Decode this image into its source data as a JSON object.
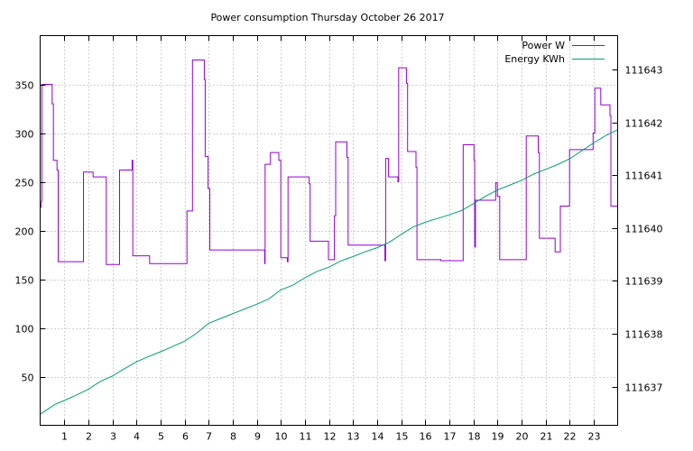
{
  "chart_data": {
    "type": "line",
    "title": "Power consumption Thursday October 26 2017",
    "xlabel": "",
    "ylabel": "",
    "y2label": "",
    "xlim": [
      0,
      24
    ],
    "ylim": [
      0,
      400
    ],
    "y2lim": [
      111636.27,
      111643.64
    ],
    "x_ticks": [
      1,
      2,
      3,
      4,
      5,
      6,
      7,
      8,
      9,
      10,
      11,
      12,
      13,
      14,
      15,
      16,
      17,
      18,
      19,
      20,
      21,
      22,
      23
    ],
    "y_ticks": [
      50,
      100,
      150,
      200,
      250,
      300,
      350
    ],
    "y2_ticks": [
      111637,
      111638,
      111639,
      111640,
      111641,
      111642,
      111643
    ],
    "grid": true,
    "legend_position": "top-right",
    "colors": {
      "power": "#9400d3",
      "energy": "#009e73"
    },
    "series": [
      {
        "name": "Power W",
        "axis": "y",
        "step": true,
        "color": "#9400d3",
        "points": [
          [
            0.0,
            224
          ],
          [
            0.05,
            230
          ],
          [
            0.07,
            350
          ],
          [
            0.45,
            350
          ],
          [
            0.5,
            330
          ],
          [
            0.55,
            272
          ],
          [
            0.7,
            262
          ],
          [
            0.75,
            168
          ],
          [
            1.75,
            168
          ],
          [
            1.8,
            260
          ],
          [
            2.15,
            260
          ],
          [
            2.2,
            255
          ],
          [
            2.7,
            255
          ],
          [
            2.75,
            165
          ],
          [
            3.25,
            165
          ],
          [
            3.3,
            262
          ],
          [
            3.8,
            262
          ],
          [
            3.82,
            272
          ],
          [
            3.85,
            174
          ],
          [
            4.5,
            174
          ],
          [
            4.55,
            166
          ],
          [
            6.0,
            166
          ],
          [
            6.1,
            220
          ],
          [
            6.3,
            220
          ],
          [
            6.33,
            375
          ],
          [
            6.8,
            375
          ],
          [
            6.82,
            355
          ],
          [
            6.86,
            276
          ],
          [
            6.98,
            243
          ],
          [
            7.05,
            180
          ],
          [
            9.3,
            180
          ],
          [
            9.33,
            166
          ],
          [
            9.35,
            268
          ],
          [
            9.55,
            268
          ],
          [
            9.57,
            280
          ],
          [
            9.9,
            280
          ],
          [
            9.92,
            272
          ],
          [
            10.0,
            172
          ],
          [
            10.25,
            172
          ],
          [
            10.27,
            168
          ],
          [
            10.3,
            255
          ],
          [
            11.15,
            255
          ],
          [
            11.18,
            248
          ],
          [
            11.22,
            189
          ],
          [
            11.95,
            189
          ],
          [
            11.98,
            170
          ],
          [
            12.2,
            170
          ],
          [
            12.23,
            215
          ],
          [
            12.28,
            291
          ],
          [
            12.7,
            291
          ],
          [
            12.75,
            275
          ],
          [
            12.8,
            185
          ],
          [
            14.3,
            185
          ],
          [
            14.33,
            169
          ],
          [
            14.36,
            274
          ],
          [
            14.45,
            274
          ],
          [
            14.48,
            255
          ],
          [
            14.85,
            255
          ],
          [
            14.87,
            250
          ],
          [
            14.9,
            367
          ],
          [
            15.2,
            367
          ],
          [
            15.22,
            351
          ],
          [
            15.27,
            281
          ],
          [
            15.6,
            281
          ],
          [
            15.62,
            265
          ],
          [
            15.66,
            170
          ],
          [
            16.6,
            170
          ],
          [
            16.65,
            169
          ],
          [
            17.55,
            169
          ],
          [
            17.58,
            288
          ],
          [
            18.0,
            288
          ],
          [
            18.03,
            272
          ],
          [
            18.06,
            183
          ],
          [
            18.09,
            231
          ],
          [
            18.9,
            231
          ],
          [
            18.93,
            249
          ],
          [
            19.0,
            235
          ],
          [
            19.1,
            170
          ],
          [
            20.15,
            170
          ],
          [
            20.2,
            297
          ],
          [
            20.65,
            297
          ],
          [
            20.7,
            280
          ],
          [
            20.75,
            192
          ],
          [
            21.35,
            192
          ],
          [
            21.4,
            178
          ],
          [
            21.6,
            178
          ],
          [
            21.62,
            225
          ],
          [
            21.95,
            225
          ],
          [
            22.0,
            283
          ],
          [
            22.95,
            283
          ],
          [
            22.98,
            300
          ],
          [
            23.05,
            346
          ],
          [
            23.25,
            346
          ],
          [
            23.3,
            329
          ],
          [
            23.65,
            329
          ],
          [
            23.68,
            318
          ],
          [
            23.72,
            225
          ],
          [
            24.0,
            225
          ]
        ]
      },
      {
        "name": "Energy KWh",
        "axis": "y2",
        "step": false,
        "color": "#009e73",
        "points": [
          [
            0.0,
            111636.48
          ],
          [
            0.3,
            111636.57
          ],
          [
            0.6,
            111636.66
          ],
          [
            1.0,
            111636.74
          ],
          [
            1.5,
            111636.84
          ],
          [
            2.0,
            111636.95
          ],
          [
            2.5,
            111637.1
          ],
          [
            3.0,
            111637.2
          ],
          [
            3.5,
            111637.34
          ],
          [
            4.0,
            111637.47
          ],
          [
            4.5,
            111637.57
          ],
          [
            5.0,
            111637.66
          ],
          [
            5.5,
            111637.76
          ],
          [
            6.0,
            111637.86
          ],
          [
            6.5,
            111638.01
          ],
          [
            7.0,
            111638.2
          ],
          [
            7.5,
            111638.29
          ],
          [
            8.0,
            111638.38
          ],
          [
            8.5,
            111638.47
          ],
          [
            9.0,
            111638.56
          ],
          [
            9.5,
            111638.66
          ],
          [
            10.0,
            111638.83
          ],
          [
            10.5,
            111638.92
          ],
          [
            11.0,
            111639.06
          ],
          [
            11.5,
            111639.18
          ],
          [
            12.0,
            111639.26
          ],
          [
            12.5,
            111639.38
          ],
          [
            13.0,
            111639.46
          ],
          [
            13.5,
            111639.55
          ],
          [
            14.0,
            111639.63
          ],
          [
            14.5,
            111639.73
          ],
          [
            15.0,
            111639.88
          ],
          [
            15.5,
            111640.02
          ],
          [
            16.0,
            111640.11
          ],
          [
            16.5,
            111640.18
          ],
          [
            17.0,
            111640.25
          ],
          [
            17.5,
            111640.33
          ],
          [
            18.0,
            111640.46
          ],
          [
            18.5,
            111640.6
          ],
          [
            19.0,
            111640.72
          ],
          [
            19.5,
            111640.81
          ],
          [
            20.0,
            111640.9
          ],
          [
            20.5,
            111641.02
          ],
          [
            21.0,
            111641.11
          ],
          [
            21.5,
            111641.2
          ],
          [
            22.0,
            111641.31
          ],
          [
            22.5,
            111641.46
          ],
          [
            23.0,
            111641.61
          ],
          [
            23.5,
            111641.75
          ],
          [
            24.0,
            111641.86
          ]
        ]
      }
    ]
  }
}
